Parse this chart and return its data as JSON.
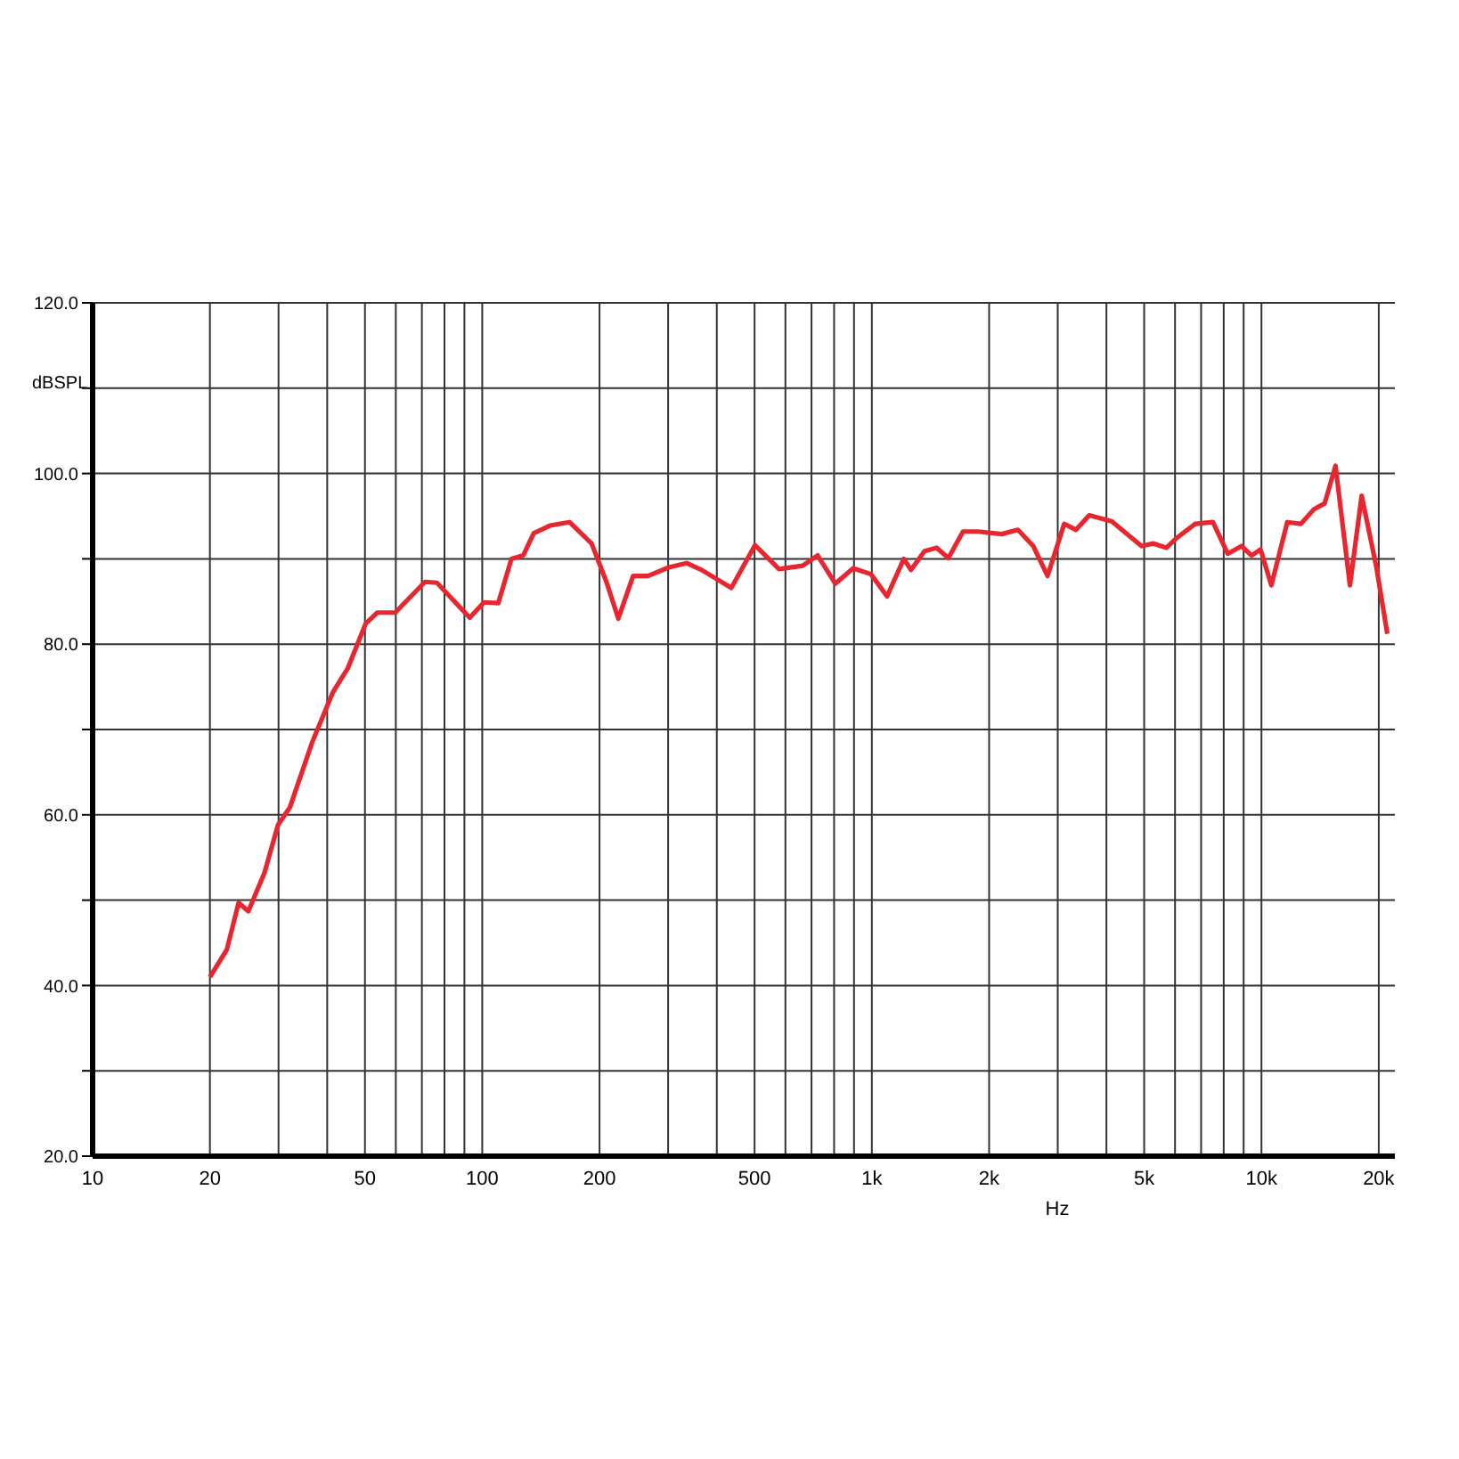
{
  "chart_data": {
    "type": "line",
    "xlabel": "Hz",
    "ylabel": "dBSPL",
    "log": "x",
    "grid": true,
    "legend": false,
    "marker": "none",
    "line_style": "solid",
    "xlim": [
      10,
      22000
    ],
    "ylim": [
      20,
      120
    ],
    "xticks": [
      10,
      20,
      {
        "value": 30,
        "label": null
      },
      {
        "value": 40,
        "label": null
      },
      50,
      {
        "value": 60,
        "label": null
      },
      {
        "value": 70,
        "label": null
      },
      {
        "value": 80,
        "label": null
      },
      {
        "value": 90,
        "label": null
      },
      100,
      200,
      {
        "value": 300,
        "label": null
      },
      {
        "value": 400,
        "label": null
      },
      500,
      {
        "value": 600,
        "label": null
      },
      {
        "value": 700,
        "label": null
      },
      {
        "value": 800,
        "label": null
      },
      {
        "value": 900,
        "label": null
      },
      {
        "value": 1000,
        "label": "1k"
      },
      {
        "value": 2000,
        "label": "2k"
      },
      {
        "value": 3000,
        "label": null
      },
      {
        "value": 4000,
        "label": null
      },
      {
        "value": 5000,
        "label": "5k"
      },
      {
        "value": 6000,
        "label": null
      },
      {
        "value": 7000,
        "label": null
      },
      {
        "value": 8000,
        "label": null
      },
      {
        "value": 9000,
        "label": null
      },
      {
        "value": 10000,
        "label": "10k"
      },
      {
        "value": 20000,
        "label": "20k"
      }
    ],
    "yticks": [
      {
        "value": 20,
        "label": "20.0"
      },
      {
        "value": 30,
        "label": null
      },
      {
        "value": 40,
        "label": "40.0"
      },
      {
        "value": 50,
        "label": null
      },
      {
        "value": 60,
        "label": "60.0"
      },
      {
        "value": 70,
        "label": null
      },
      {
        "value": 80,
        "label": "80.0"
      },
      {
        "value": 90,
        "label": null
      },
      {
        "value": 100,
        "label": "100.0"
      },
      {
        "value": 110,
        "label": null
      },
      {
        "value": 120,
        "label": "120.0"
      }
    ],
    "series": [
      {
        "color": "#e8262f",
        "x": [
          20,
          22.1,
          23.7,
          25.1,
          27.6,
          29.9,
          32.1,
          36.6,
          41.4,
          45.2,
          50.2,
          53.8,
          59.8,
          71.3,
          76.5,
          92.9,
          101,
          109.9,
          118.8,
          127.4,
          135.6,
          149.2,
          167.5,
          190.8,
          208.3,
          223.5,
          243.9,
          266.3,
          301.1,
          334.7,
          365.6,
          435.8,
          501.4,
          577.7,
          664.4,
          725.8,
          805.6,
          895.6,
          995,
          1094,
          1208,
          1260,
          1365,
          1466,
          1572,
          1714,
          1871,
          2156,
          2371,
          2596,
          2825,
          3117,
          3342,
          3613,
          4128,
          4923,
          5283,
          5704,
          6080,
          6761,
          7505,
          8194,
          8890,
          9431,
          9946,
          10600,
          11650,
          12620,
          13640,
          14530,
          15490,
          16870,
          18080,
          19730,
          21040
        ],
        "values": [
          41.0,
          44.2,
          49.7,
          48.7,
          53.2,
          58.8,
          60.9,
          68.5,
          74.4,
          77.2,
          82.4,
          83.7,
          83.7,
          87.3,
          87.2,
          83.1,
          84.9,
          84.8,
          90.0,
          90.4,
          93.0,
          93.9,
          94.3,
          91.8,
          87.3,
          83.0,
          88.0,
          88.0,
          89.0,
          89.5,
          88.7,
          86.6,
          91.6,
          88.8,
          89.2,
          90.4,
          87.1,
          88.9,
          88.2,
          85.6,
          90.0,
          88.7,
          90.9,
          91.3,
          90.1,
          93.2,
          93.2,
          92.9,
          93.4,
          91.5,
          88.0,
          94.1,
          93.4,
          95.1,
          94.4,
          91.5,
          91.8,
          91.3,
          92.5,
          94.1,
          94.3,
          90.6,
          91.5,
          90.4,
          91.1,
          86.9,
          94.3,
          94.1,
          95.8,
          96.5,
          100.9,
          86.9,
          97.4,
          89.0,
          81.2
        ]
      }
    ]
  }
}
